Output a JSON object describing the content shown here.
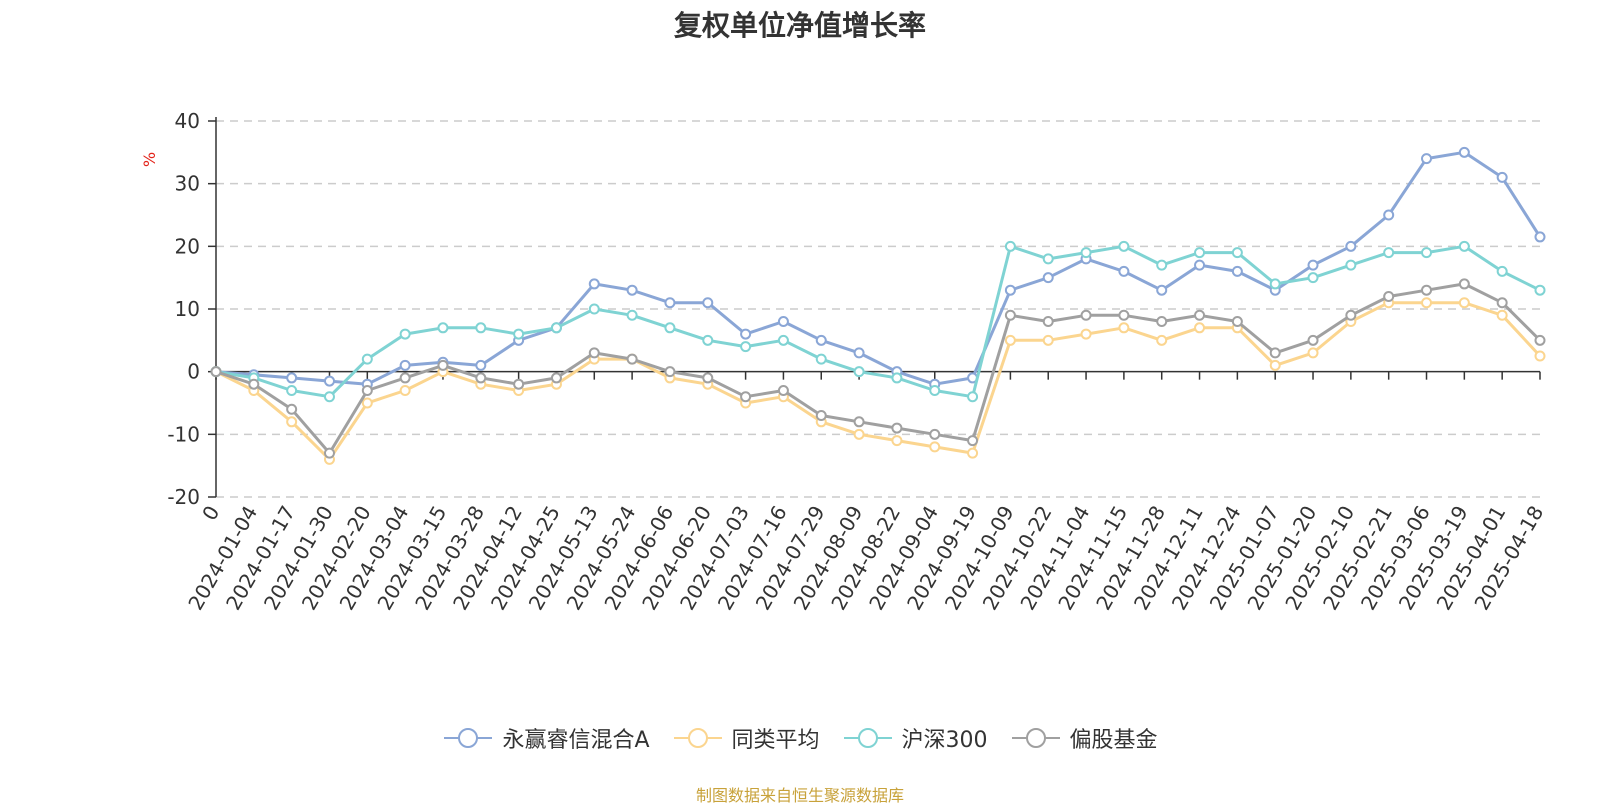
{
  "chart_data": {
    "type": "line",
    "title": "复权单位净值增长率",
    "ylabel": "%",
    "ylim": [
      -20,
      40
    ],
    "yticks": [
      40,
      30,
      20,
      10,
      0,
      -10,
      -20
    ],
    "grid": "dashed horizontal",
    "legend_position": "bottom",
    "x_tick_labels": [
      "0",
      "2024-01-04",
      "2024-01-17",
      "2024-01-30",
      "2024-02-20",
      "2024-03-04",
      "2024-03-15",
      "2024-03-28",
      "2024-04-12",
      "2024-04-25",
      "2024-05-13",
      "2024-05-24",
      "2024-06-06",
      "2024-06-20",
      "2024-07-03",
      "2024-07-16",
      "2024-07-29",
      "2024-08-09",
      "2024-08-22",
      "2024-09-04",
      "2024-09-19",
      "2024-10-09",
      "2024-10-22",
      "2024-11-04",
      "2024-11-15",
      "2024-11-28",
      "2024-12-11",
      "2024-12-24",
      "2025-01-07",
      "2025-01-20",
      "2025-02-10",
      "2025-02-21",
      "2025-03-06",
      "2025-03-19",
      "2025-04-01",
      "2025-04-18"
    ],
    "series": [
      {
        "name": "永赢睿信混合A",
        "color": "#8aa6d6",
        "values": [
          0,
          -0.5,
          -1,
          -1.5,
          -2,
          1,
          1.5,
          1,
          5,
          7,
          14,
          13,
          11,
          11,
          6,
          8,
          5,
          3,
          0,
          -2,
          -1,
          13,
          15,
          18,
          16,
          13,
          17,
          16,
          13,
          17,
          20,
          25,
          34,
          35,
          31,
          21.5
        ]
      },
      {
        "name": "同类平均",
        "color": "#fbd58f",
        "values": [
          0,
          -3,
          -8,
          -14,
          -5,
          -3,
          0,
          -2,
          -3,
          -2,
          2,
          2,
          -1,
          -2,
          -5,
          -4,
          -8,
          -10,
          -11,
          -12,
          -13,
          5,
          5,
          6,
          7,
          5,
          7,
          7,
          1,
          3,
          8,
          11,
          11,
          11,
          9,
          2.5
        ]
      },
      {
        "name": "沪深300",
        "color": "#7fd3d3",
        "values": [
          0,
          -1,
          -3,
          -4,
          2,
          6,
          7,
          7,
          6,
          7,
          10,
          9,
          7,
          5,
          4,
          5,
          2,
          0,
          -1,
          -3,
          -4,
          20,
          18,
          19,
          20,
          17,
          19,
          19,
          14,
          15,
          17,
          19,
          19,
          20,
          16,
          13
        ]
      },
      {
        "name": "偏股基金",
        "color": "#a0a0a0",
        "values": [
          0,
          -2,
          -6,
          -13,
          -3,
          -1,
          1,
          -1,
          -2,
          -1,
          3,
          2,
          0,
          -1,
          -4,
          -3,
          -7,
          -8,
          -9,
          -10,
          -11,
          9,
          8,
          9,
          9,
          8,
          9,
          8,
          3,
          5,
          9,
          12,
          13,
          14,
          11,
          5
        ]
      }
    ]
  },
  "legend": {
    "items": [
      "永赢睿信混合A",
      "同类平均",
      "沪深300",
      "偏股基金"
    ]
  },
  "footer": {
    "source": "制图数据来自恒生聚源数据库"
  }
}
